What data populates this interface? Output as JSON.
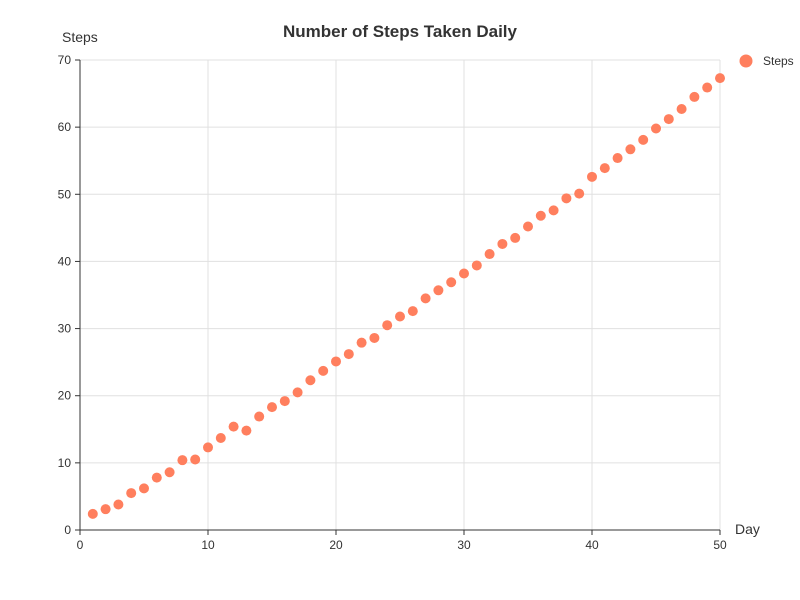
{
  "chart_data": {
    "type": "scatter",
    "title": "Number of Steps Taken Daily",
    "xlabel": "Day",
    "ylabel": "Steps",
    "xlim": [
      0,
      50
    ],
    "ylim": [
      0,
      70
    ],
    "xticks": [
      0,
      10,
      20,
      30,
      40,
      50
    ],
    "yticks": [
      0,
      10,
      20,
      30,
      40,
      50,
      60,
      70
    ],
    "grid": true,
    "legend_position": "top-right",
    "series": [
      {
        "name": "Steps",
        "color": "#ff7f5e",
        "x": [
          1,
          2,
          3,
          4,
          5,
          6,
          7,
          8,
          9,
          10,
          11,
          12,
          13,
          14,
          15,
          16,
          17,
          18,
          19,
          20,
          21,
          22,
          23,
          24,
          25,
          26,
          27,
          28,
          29,
          30,
          31,
          32,
          33,
          34,
          35,
          36,
          37,
          38,
          39,
          40,
          41,
          42,
          43,
          44,
          45,
          46,
          47,
          48,
          49,
          50
        ],
        "y": [
          2.4,
          3.1,
          3.8,
          5.5,
          6.2,
          7.8,
          8.6,
          10.4,
          10.5,
          12.3,
          13.7,
          15.4,
          14.8,
          16.9,
          18.3,
          19.2,
          20.5,
          22.3,
          23.7,
          25.1,
          26.2,
          27.9,
          28.6,
          30.5,
          31.8,
          32.6,
          34.5,
          35.7,
          36.9,
          38.2,
          39.4,
          41.1,
          42.6,
          43.5,
          45.2,
          46.8,
          47.6,
          49.4,
          50.1,
          52.6,
          53.9,
          55.4,
          56.7,
          58.1,
          59.8,
          61.2,
          62.7,
          64.5,
          65.9,
          67.3
        ]
      }
    ]
  }
}
